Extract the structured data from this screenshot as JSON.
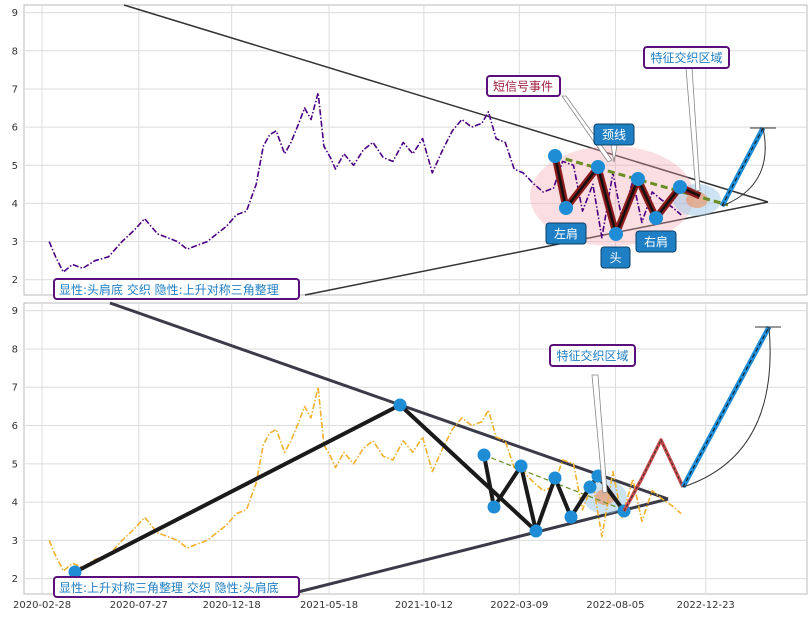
{
  "chart_data": [
    {
      "type": "line",
      "panel": "top",
      "ylim": [
        1.6,
        9.2
      ],
      "yticks": [
        "2",
        "3",
        "4",
        "5",
        "6",
        "7",
        "8",
        "9"
      ],
      "grid": true,
      "series": [
        {
          "color": "#4b0082",
          "style": "dash-dot",
          "x": [
            "2020-03-10",
            "2020-03-20",
            "2020-04-01",
            "2020-04-15",
            "2020-05-01",
            "2020-05-20",
            "2020-06-10",
            "2020-07-01",
            "2020-07-20",
            "2020-08-05",
            "2020-08-25",
            "2020-09-10",
            "2020-09-25",
            "2020-10-10",
            "2020-10-25",
            "2020-11-10",
            "2020-11-25",
            "2020-12-10",
            "2020-12-25",
            "2021-01-10",
            "2021-01-25",
            "2021-02-05",
            "2021-02-15",
            "2021-02-25",
            "2021-03-10",
            "2021-03-20",
            "2021-04-01",
            "2021-04-10",
            "2021-04-20",
            "2021-05-01",
            "2021-05-10",
            "2021-05-20",
            "2021-05-28",
            "2021-06-10",
            "2021-06-25",
            "2021-07-10",
            "2021-07-25",
            "2021-08-10",
            "2021-08-25",
            "2021-09-10",
            "2021-09-25",
            "2021-10-10",
            "2021-10-25",
            "2021-11-10",
            "2021-11-25",
            "2021-12-10",
            "2021-12-25",
            "2022-01-10",
            "2022-01-20",
            "2022-02-01",
            "2022-02-15",
            "2022-03-01",
            "2022-03-15",
            "2022-04-01",
            "2022-04-15",
            "2022-05-01",
            "2022-05-15",
            "2022-06-01",
            "2022-06-15",
            "2022-07-01",
            "2022-07-15",
            "2022-08-01",
            "2022-08-15",
            "2022-09-01",
            "2022-09-15",
            "2022-10-01",
            "2022-10-15",
            "2022-11-01",
            "2022-11-15"
          ],
          "y": [
            3.0,
            2.6,
            2.2,
            2.4,
            2.3,
            2.5,
            2.6,
            3.0,
            3.3,
            3.6,
            3.2,
            3.1,
            3.0,
            2.8,
            2.9,
            3.0,
            3.2,
            3.4,
            3.7,
            3.8,
            4.5,
            5.5,
            5.8,
            5.9,
            5.3,
            5.6,
            6.1,
            6.5,
            6.2,
            6.9,
            5.5,
            5.2,
            4.9,
            5.3,
            5.0,
            5.4,
            5.6,
            5.2,
            5.1,
            5.6,
            5.3,
            5.7,
            4.8,
            5.4,
            5.9,
            6.2,
            6.0,
            6.1,
            6.4,
            5.7,
            5.6,
            4.9,
            4.8,
            4.5,
            4.3,
            4.4,
            5.1,
            5.0,
            3.8,
            4.5,
            3.1,
            4.8,
            3.6,
            4.6,
            3.5,
            4.3,
            4.1,
            3.9,
            3.7
          ]
        }
      ]
    },
    {
      "type": "line",
      "panel": "bottom",
      "ylim": [
        1.6,
        9.2
      ],
      "yticks": [
        "2",
        "3",
        "4",
        "5",
        "6",
        "7",
        "8",
        "9"
      ],
      "xticks": [
        "2020-02-28",
        "2020-07-27",
        "2020-12-18",
        "2021-05-18",
        "2021-10-12",
        "2022-03-09",
        "2022-08-05",
        "2022-12-23"
      ],
      "grid": true,
      "series": [
        {
          "color": "#f0b030",
          "style": "dash-dot",
          "x": [
            "2020-03-10",
            "2020-03-20",
            "2020-04-01",
            "2020-04-15",
            "2020-05-01",
            "2020-05-20",
            "2020-06-10",
            "2020-07-01",
            "2020-07-20",
            "2020-08-05",
            "2020-08-25",
            "2020-09-10",
            "2020-09-25",
            "2020-10-10",
            "2020-10-25",
            "2020-11-10",
            "2020-11-25",
            "2020-12-10",
            "2020-12-25",
            "2021-01-10",
            "2021-01-25",
            "2021-02-05",
            "2021-02-15",
            "2021-02-25",
            "2021-03-10",
            "2021-03-20",
            "2021-04-01",
            "2021-04-10",
            "2021-04-20",
            "2021-05-01",
            "2021-05-10",
            "2021-05-20",
            "2021-05-28",
            "2021-06-10",
            "2021-06-25",
            "2021-07-10",
            "2021-07-25",
            "2021-08-10",
            "2021-08-25",
            "2021-09-10",
            "2021-09-25",
            "2021-10-10",
            "2021-10-25",
            "2021-11-10",
            "2021-11-25",
            "2021-12-10",
            "2021-12-25",
            "2022-01-10",
            "2022-01-20",
            "2022-02-01",
            "2022-02-15",
            "2022-03-01",
            "2022-03-15",
            "2022-04-01",
            "2022-04-15",
            "2022-05-01",
            "2022-05-15",
            "2022-06-01",
            "2022-06-15",
            "2022-07-01",
            "2022-07-15",
            "2022-08-01",
            "2022-08-15",
            "2022-09-01",
            "2022-09-15",
            "2022-10-01",
            "2022-10-15",
            "2022-11-01",
            "2022-11-15"
          ],
          "y": [
            3.0,
            2.6,
            2.2,
            2.4,
            2.3,
            2.5,
            2.6,
            3.0,
            3.3,
            3.6,
            3.2,
            3.1,
            3.0,
            2.8,
            2.9,
            3.0,
            3.2,
            3.4,
            3.7,
            3.8,
            4.5,
            5.5,
            5.8,
            5.9,
            5.3,
            5.6,
            6.1,
            6.5,
            6.2,
            7.0,
            5.5,
            5.2,
            4.9,
            5.3,
            5.0,
            5.4,
            5.6,
            5.2,
            5.1,
            5.6,
            5.3,
            5.7,
            4.8,
            5.4,
            5.9,
            6.2,
            6.0,
            6.1,
            6.4,
            5.7,
            5.6,
            4.9,
            4.8,
            4.5,
            4.3,
            4.4,
            5.1,
            5.0,
            3.8,
            4.5,
            3.1,
            4.8,
            3.6,
            4.6,
            3.5,
            4.3,
            4.1,
            3.9,
            3.7
          ]
        }
      ]
    }
  ],
  "annotations": {
    "top": {
      "callout_signal": "短信号事件",
      "callout_neckline": "颈线",
      "callout_zone": "特征交织区域",
      "tag_left_shoulder": "左肩",
      "tag_head": "头",
      "tag_right_shoulder": "右肩",
      "legend": "显性:头肩底 交织 隐性:上升对称三角整理"
    },
    "bottom": {
      "callout_zone": "特征交织区域",
      "legend": "显性:上升对称三角整理 交织 隐性:头肩底"
    }
  },
  "colors": {
    "top_series": "#4b0082",
    "bottom_series": "#f0b030",
    "pattern_line_top": "#8b1a1a",
    "pattern_line_bottom": "#1a1a1a",
    "node_blue": "#1f8dd6",
    "tag_bg": "#1f7fc4",
    "callout_border": "#5a0f7a",
    "neckline": "#6b8e23",
    "projection": "#1f8dd6",
    "triangle": "#2a2a3a"
  }
}
